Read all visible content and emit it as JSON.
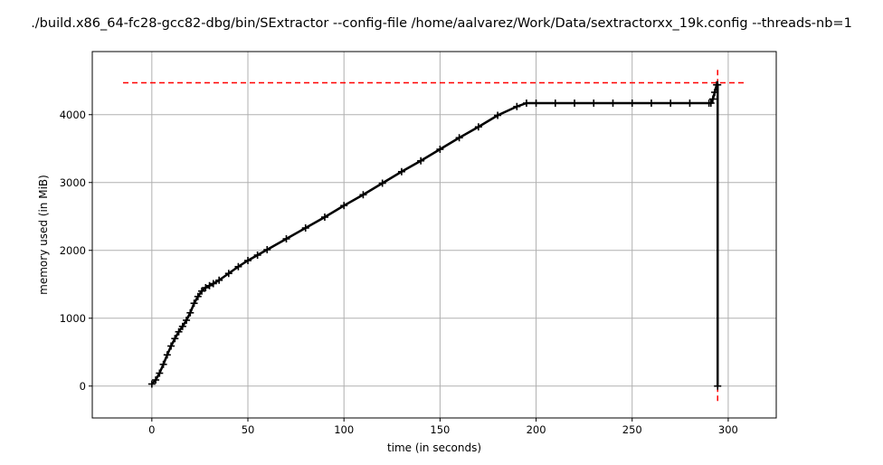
{
  "chart_data": {
    "type": "scatter",
    "title": "./build.x86_64-fc28-gcc82-dbg/bin/SExtractor --config-file /home/aalvarez/Work/Data/sextractorxx_19k.config --threads-nb=1",
    "xlabel": "time (in seconds)",
    "ylabel": "memory used (in MiB)",
    "xlim": [
      -31,
      325
    ],
    "ylim": [
      -470,
      4930
    ],
    "xticks": [
      0,
      50,
      100,
      150,
      200,
      250,
      300
    ],
    "yticks": [
      0,
      1000,
      2000,
      3000,
      4000
    ],
    "grid": true,
    "legend": "none",
    "series": [
      {
        "marker": "+",
        "color": "#000000",
        "line": true,
        "points": [
          [
            0,
            30
          ],
          [
            2,
            90
          ],
          [
            4,
            190
          ],
          [
            6,
            320
          ],
          [
            8,
            460
          ],
          [
            10,
            590
          ],
          [
            12,
            700
          ],
          [
            14,
            800
          ],
          [
            16,
            880
          ],
          [
            18,
            970
          ],
          [
            20,
            1080
          ],
          [
            22,
            1220
          ],
          [
            24,
            1320
          ],
          [
            26,
            1400
          ],
          [
            28,
            1450
          ],
          [
            30,
            1480
          ],
          [
            32,
            1510
          ],
          [
            35,
            1560
          ],
          [
            40,
            1660
          ],
          [
            45,
            1760
          ],
          [
            50,
            1850
          ],
          [
            55,
            1930
          ],
          [
            60,
            2010
          ],
          [
            70,
            2170
          ],
          [
            80,
            2330
          ],
          [
            90,
            2490
          ],
          [
            100,
            2660
          ],
          [
            110,
            2820
          ],
          [
            120,
            2990
          ],
          [
            130,
            3160
          ],
          [
            140,
            3320
          ],
          [
            150,
            3490
          ],
          [
            160,
            3660
          ],
          [
            170,
            3820
          ],
          [
            180,
            3990
          ],
          [
            190,
            4120
          ],
          [
            195,
            4170
          ],
          [
            200,
            4170
          ],
          [
            210,
            4170
          ],
          [
            220,
            4170
          ],
          [
            230,
            4170
          ],
          [
            240,
            4170
          ],
          [
            250,
            4170
          ],
          [
            260,
            4170
          ],
          [
            270,
            4170
          ],
          [
            280,
            4170
          ],
          [
            290,
            4170
          ],
          [
            291,
            4170
          ],
          [
            292,
            4230
          ],
          [
            293,
            4330
          ],
          [
            294,
            4440
          ],
          [
            294.5,
            4440
          ],
          [
            294.5,
            0
          ]
        ]
      }
    ],
    "reference_lines": [
      {
        "orientation": "horizontal",
        "value": 4470,
        "from": -15,
        "to": 309,
        "color": "#ff0000",
        "style": "dashed"
      },
      {
        "orientation": "vertical",
        "value": 294.5,
        "from": -220,
        "to": 4700,
        "color": "#ff0000",
        "style": "dashed"
      }
    ],
    "colors": {
      "series": "#000000",
      "reference": "#ff0000",
      "grid": "#b0b0b0",
      "axes": "#000000"
    }
  }
}
